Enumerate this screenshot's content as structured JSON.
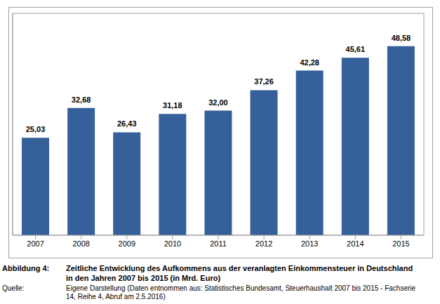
{
  "chart_data": {
    "type": "bar",
    "figure_number": "Abbildung 4:",
    "title": "Zeitliche Entwicklung des Aufkommens aus der veranlagten Einkommensteuer in Deutschland in den Jahren 2007 bis 2015 (in Mrd. Euro)",
    "source_label": "Quelle:",
    "source": "Eigene Darstellung (Daten entnommen aus: Statistisches Bundesamt, Steuerhaushalt 2007 bis 2015 - Fachserie 14, Reihe 4, Abruf am 2.5.2016)",
    "categories": [
      "2007",
      "2008",
      "2009",
      "2010",
      "2011",
      "2012",
      "2013",
      "2014",
      "2015"
    ],
    "values": [
      25.03,
      32.68,
      26.43,
      31.18,
      32.0,
      37.26,
      42.28,
      45.61,
      48.58
    ],
    "value_labels": [
      "25,03",
      "32,68",
      "26,43",
      "31,18",
      "32,00",
      "37,26",
      "42,28",
      "45,61",
      "48,58"
    ],
    "color": "#36609a",
    "ylim": [
      0,
      57
    ],
    "data_labels": true,
    "tick_labels": "x",
    "grid": false
  }
}
